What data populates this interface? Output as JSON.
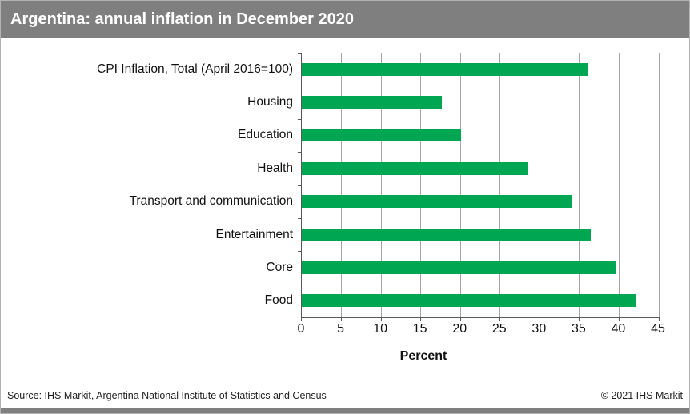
{
  "header": {
    "title": "Argentina: annual inflation in December 2020",
    "bg_color": "#7f7f7f"
  },
  "chart_data": {
    "type": "bar",
    "orientation": "horizontal",
    "title": "Argentina: annual inflation in December 2020",
    "categories": [
      "CPI Inflation, Total (April 2016=100)",
      "Housing",
      "Education",
      "Health",
      "Transport and communication",
      "Entertainment",
      "Core",
      "Food"
    ],
    "values": [
      36.1,
      17.7,
      20.1,
      28.6,
      34.0,
      36.4,
      39.6,
      42.1
    ],
    "xlabel": "Percent",
    "xlim": [
      0,
      45
    ],
    "xticks": [
      0,
      5,
      10,
      15,
      20,
      25,
      30,
      35,
      40,
      45
    ],
    "grid": true,
    "legend": "none",
    "bar_color": "#00a651",
    "gridline_color": "#a6a6a6",
    "axis_color": "#595959"
  },
  "footer": {
    "source": "Source: IHS Markit, Argentina National Institute of Statistics and Census",
    "copyright": "© 2021 IHS Markit"
  }
}
